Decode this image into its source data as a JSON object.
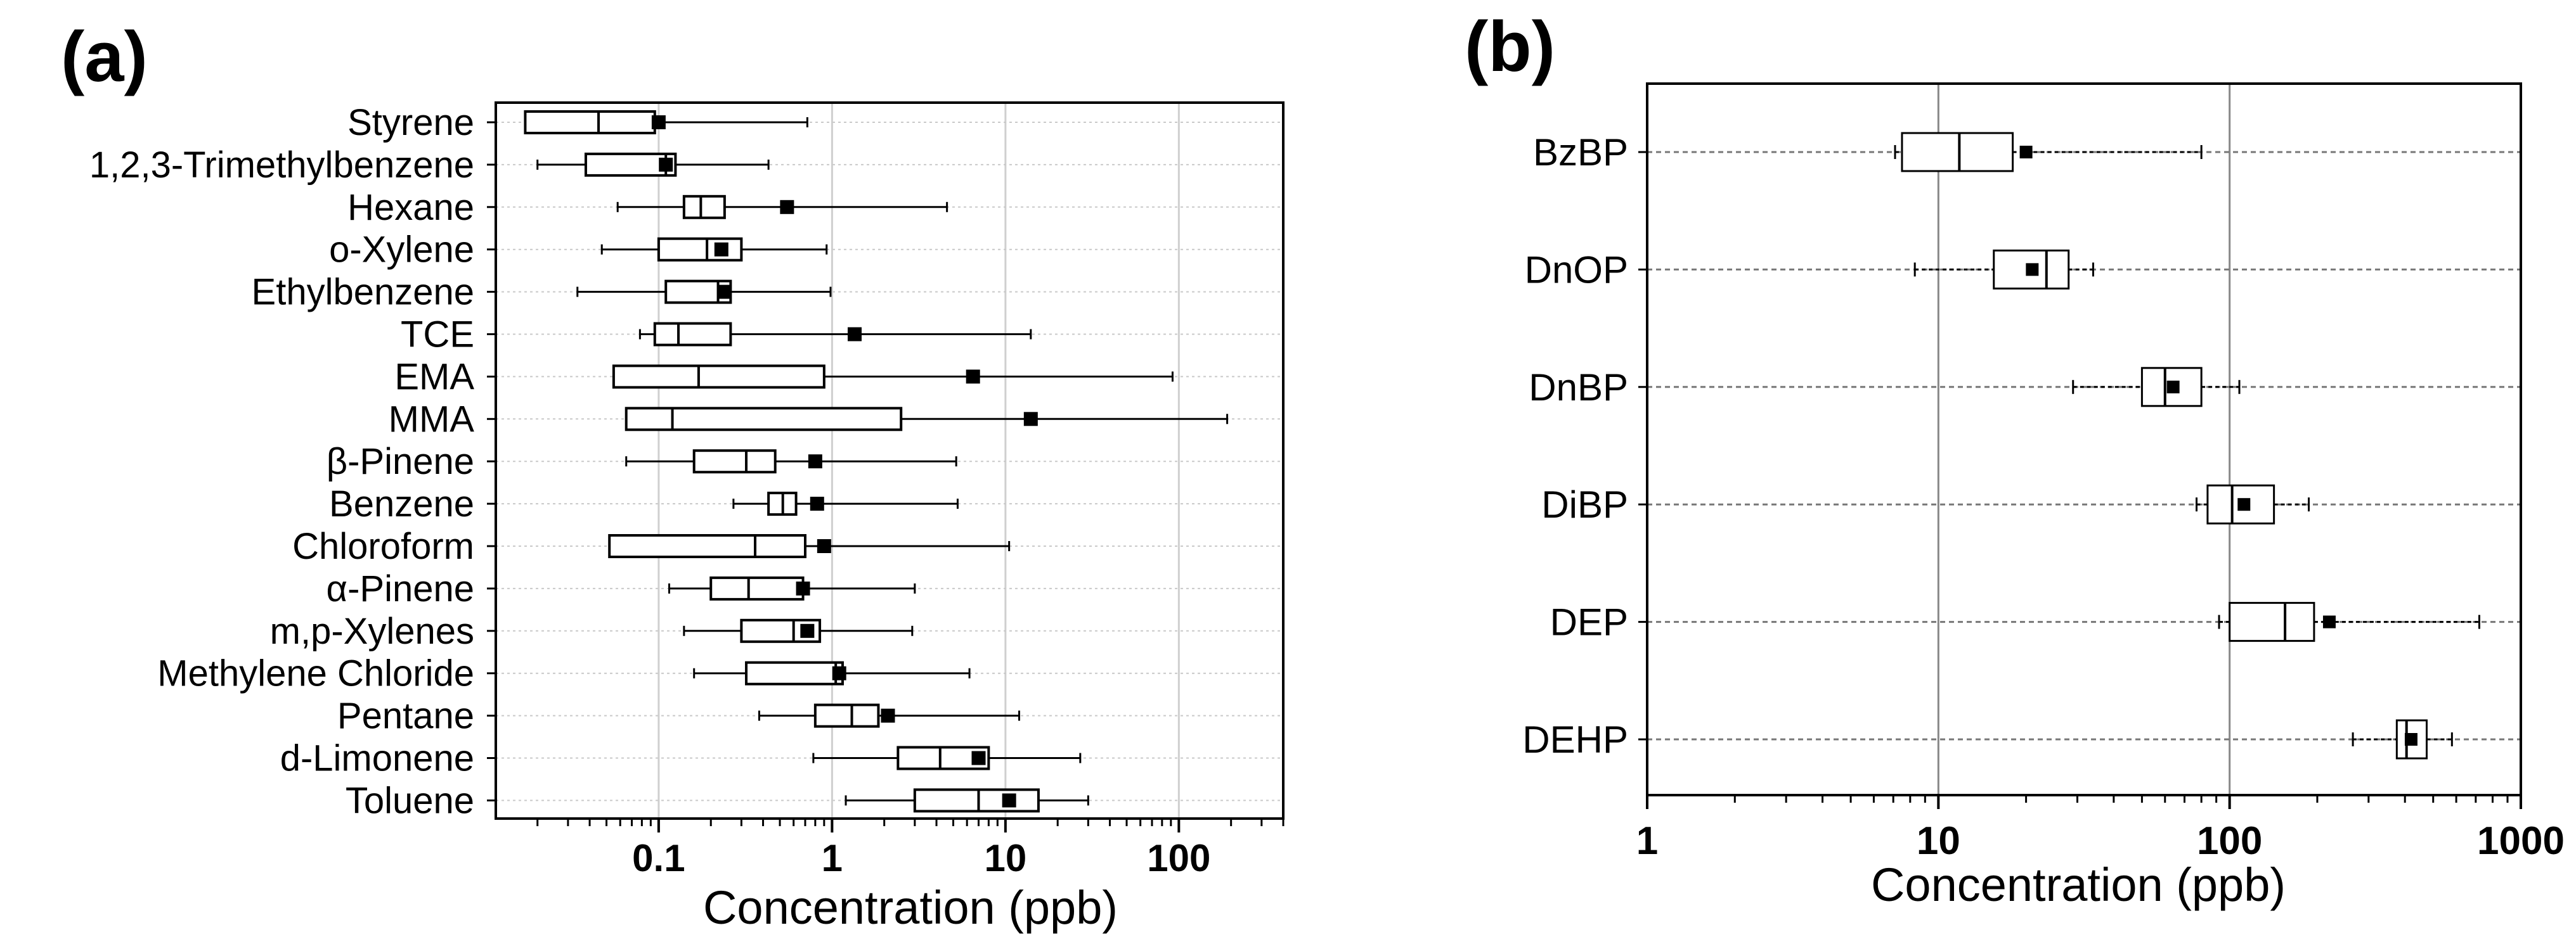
{
  "chart_data": [
    {
      "panel_label": "(a)",
      "type": "box",
      "orientation": "horizontal",
      "xscale": "log",
      "xlabel": "Concentration (ppb)",
      "xlim": [
        0.0115,
        400
      ],
      "xticks": [
        0.1,
        1,
        10,
        100
      ],
      "xtick_labels": [
        "0.1",
        "1",
        "10",
        "100"
      ],
      "grid": true,
      "whisker_style": "solid",
      "series": [
        {
          "name": "Styrene",
          "min": 0.017,
          "q1": 0.017,
          "median": 0.045,
          "q3": 0.095,
          "max": 0.72,
          "mean": 0.1
        },
        {
          "name": "1,2,3-Trimethylbenzene",
          "min": 0.02,
          "q1": 0.038,
          "median": 0.11,
          "q3": 0.125,
          "max": 0.43,
          "mean": 0.11
        },
        {
          "name": "Hexane",
          "min": 0.058,
          "q1": 0.14,
          "median": 0.175,
          "q3": 0.24,
          "max": 4.6,
          "mean": 0.55
        },
        {
          "name": "o-Xylene",
          "min": 0.047,
          "q1": 0.1,
          "median": 0.19,
          "q3": 0.3,
          "max": 0.93,
          "mean": 0.23
        },
        {
          "name": "Ethylbenzene",
          "min": 0.034,
          "q1": 0.11,
          "median": 0.22,
          "q3": 0.26,
          "max": 0.98,
          "mean": 0.24
        },
        {
          "name": "TCE",
          "min": 0.078,
          "q1": 0.095,
          "median": 0.13,
          "q3": 0.26,
          "max": 14,
          "mean": 1.35
        },
        {
          "name": "EMA",
          "min": 0.055,
          "q1": 0.055,
          "median": 0.17,
          "q3": 0.9,
          "max": 92,
          "mean": 6.5
        },
        {
          "name": "MMA",
          "min": 0.065,
          "q1": 0.065,
          "median": 0.12,
          "q3": 2.5,
          "max": 190,
          "mean": 14
        },
        {
          "name": "β-Pinene",
          "min": 0.065,
          "q1": 0.16,
          "median": 0.32,
          "q3": 0.47,
          "max": 5.2,
          "mean": 0.8
        },
        {
          "name": "Benzene",
          "min": 0.27,
          "q1": 0.43,
          "median": 0.52,
          "q3": 0.62,
          "max": 5.3,
          "mean": 0.82
        },
        {
          "name": "Chloroform",
          "min": 0.052,
          "q1": 0.052,
          "median": 0.36,
          "q3": 0.7,
          "max": 10.5,
          "mean": 0.9
        },
        {
          "name": "α-Pinene",
          "min": 0.115,
          "q1": 0.2,
          "median": 0.33,
          "q3": 0.68,
          "max": 3,
          "mean": 0.68
        },
        {
          "name": "m,p-Xylenes",
          "min": 0.14,
          "q1": 0.3,
          "median": 0.6,
          "q3": 0.85,
          "max": 2.9,
          "mean": 0.72
        },
        {
          "name": "Methylene Chloride",
          "min": 0.16,
          "q1": 0.32,
          "median": 1.05,
          "q3": 1.15,
          "max": 6.2,
          "mean": 1.1
        },
        {
          "name": "Pentane",
          "min": 0.38,
          "q1": 0.8,
          "median": 1.3,
          "q3": 1.85,
          "max": 12,
          "mean": 2.1
        },
        {
          "name": "d-Limonene",
          "min": 0.78,
          "q1": 2.4,
          "median": 4.2,
          "q3": 8,
          "max": 27,
          "mean": 7
        },
        {
          "name": "Toluene",
          "min": 1.2,
          "q1": 3,
          "median": 7,
          "q3": 15.5,
          "max": 30,
          "mean": 10.5
        }
      ]
    },
    {
      "panel_label": "(b)",
      "type": "box",
      "orientation": "horizontal",
      "xscale": "log",
      "xlabel": "Concentration (ppb)",
      "xlim": [
        1,
        1000
      ],
      "xticks": [
        1,
        10,
        100,
        1000
      ],
      "xtick_labels": [
        "1",
        "10",
        "100",
        "1000"
      ],
      "grid": true,
      "whisker_style": "dotted",
      "series": [
        {
          "name": "BzBP",
          "min": 7.1,
          "q1": 7.5,
          "median": 11.8,
          "q3": 18,
          "max": 80,
          "mean": 20
        },
        {
          "name": "DnOP",
          "min": 8.3,
          "q1": 15.5,
          "median": 23.5,
          "q3": 28,
          "max": 34,
          "mean": 21
        },
        {
          "name": "DnBP",
          "min": 29,
          "q1": 50,
          "median": 60,
          "q3": 80,
          "max": 108,
          "mean": 64
        },
        {
          "name": "DiBP",
          "min": 77,
          "q1": 84,
          "median": 102,
          "q3": 142,
          "max": 187,
          "mean": 112
        },
        {
          "name": "DEP",
          "min": 92,
          "q1": 100,
          "median": 155,
          "q3": 195,
          "max": 720,
          "mean": 220
        },
        {
          "name": "DEHP",
          "min": 265,
          "q1": 375,
          "median": 405,
          "q3": 475,
          "max": 580,
          "mean": 420
        }
      ]
    }
  ]
}
